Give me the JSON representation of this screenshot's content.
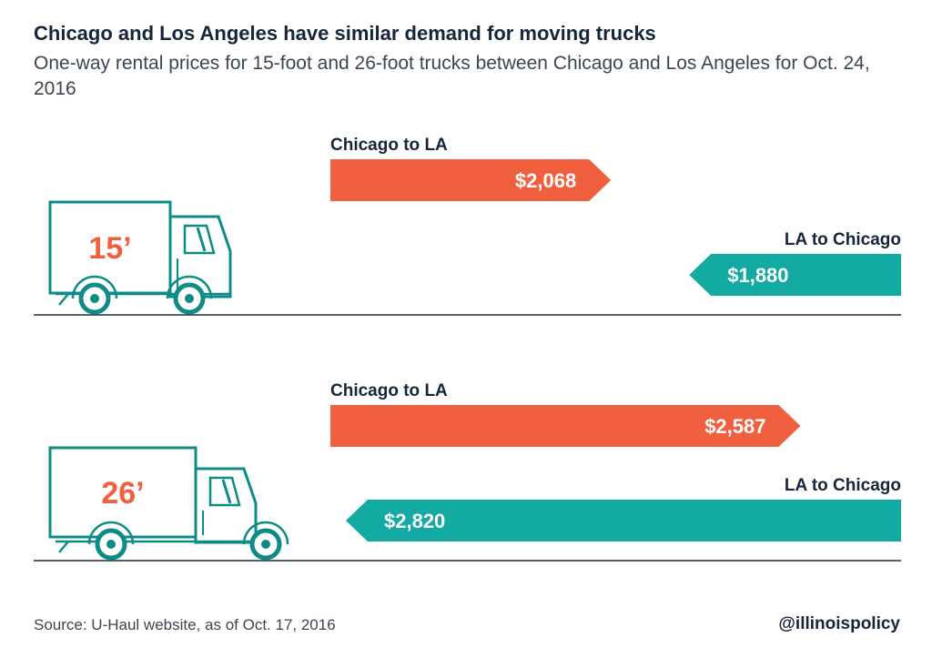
{
  "header": {
    "title": "Chicago and Los Angeles have similar demand for moving trucks",
    "subtitle": "One-way rental prices for 15-foot and 26-foot trucks between Chicago and Los Angeles for Oct. 24, 2016"
  },
  "footer": {
    "source": "Source: U-Haul website, as of Oct. 17, 2016",
    "handle": "@illinoispolicy"
  },
  "colors": {
    "chicago_to_la": "#f0603f",
    "la_to_chicago": "#12aaa2",
    "truck_outline": "#0d8c87",
    "truck_label": "#f0603f",
    "baseline": "#1e2d3d"
  },
  "chart_data": {
    "type": "bar",
    "title": "Chicago and Los Angeles have similar demand for moving trucks",
    "subtitle": "One-way rental prices for 15-foot and 26-foot trucks between Chicago and Los Angeles for Oct. 24, 2016",
    "categories": [
      "15’",
      "26’"
    ],
    "series": [
      {
        "name": "Chicago to LA",
        "values": [
          2068,
          2587
        ],
        "labels": [
          "$2,068",
          "$2,587"
        ]
      },
      {
        "name": "LA to Chicago",
        "values": [
          1880,
          2820
        ],
        "labels": [
          "$1,880",
          "$2,820"
        ]
      }
    ],
    "grid": false,
    "legend": "none"
  }
}
